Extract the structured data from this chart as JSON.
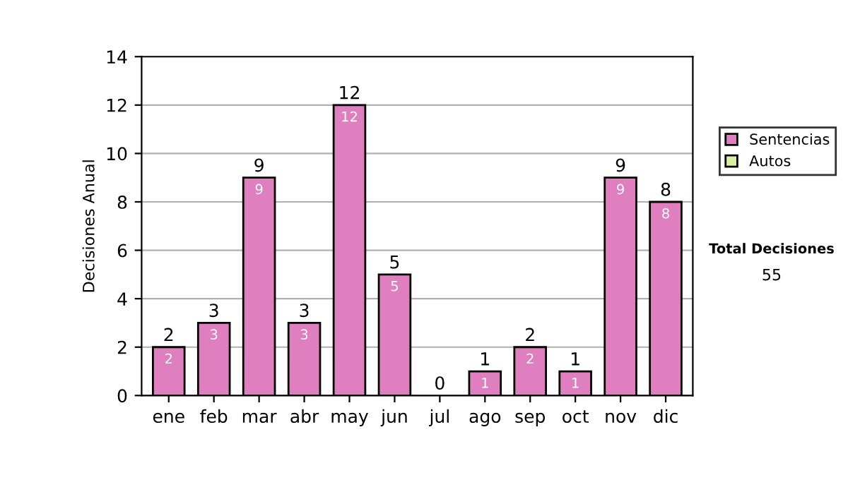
{
  "chart_data": {
    "type": "bar",
    "stacked": true,
    "ylabel": "Decisiones Anual",
    "categories": [
      "ene",
      "feb",
      "mar",
      "abr",
      "may",
      "jun",
      "jul",
      "ago",
      "sep",
      "oct",
      "nov",
      "dic"
    ],
    "series": [
      {
        "name": "Sentencias",
        "color": "#e07fc0",
        "values": [
          2,
          3,
          9,
          3,
          12,
          5,
          0,
          1,
          2,
          1,
          9,
          8
        ],
        "value_labels": [
          "2",
          "3",
          "9",
          "3",
          "12",
          "5",
          null,
          "1",
          "2",
          "1",
          "9",
          "8"
        ]
      },
      {
        "name": "Autos",
        "color": "#d8f0a0",
        "values": [
          0,
          0,
          0,
          0,
          0,
          0,
          0,
          0,
          0,
          0,
          0,
          0
        ]
      }
    ],
    "totals": [
      "2",
      "3",
      "9",
      "3",
      "12",
      "5",
      "0",
      "1",
      "2",
      "1",
      "9",
      "8"
    ],
    "ylim": [
      0,
      14
    ],
    "yticks": [
      0,
      2,
      4,
      6,
      8,
      10,
      12,
      14
    ],
    "grid": "y",
    "legend": "right",
    "annotations": [
      "Total Decisiones",
      "55"
    ]
  }
}
